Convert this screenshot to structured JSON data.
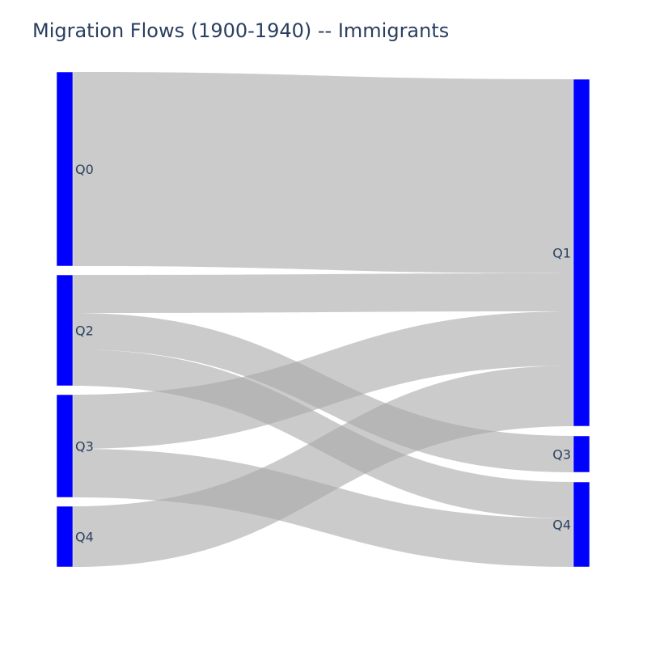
{
  "title": "Migration Flows (1900-1940) -- Immigrants",
  "colors": {
    "node": "#0000ff",
    "link": "#a8a8a8",
    "text": "#2a3f5f"
  },
  "chart_data": {
    "type": "sankey",
    "title": "Migration Flows (1900-1940) -- Immigrants",
    "source_nodes": [
      "Q0",
      "Q2",
      "Q3",
      "Q4"
    ],
    "target_nodes": [
      "Q1",
      "Q3",
      "Q4"
    ],
    "links": [
      {
        "source": "Q0",
        "target": "Q1",
        "value": 240
      },
      {
        "source": "Q2",
        "target": "Q1",
        "value": 47
      },
      {
        "source": "Q2",
        "target": "Q3",
        "value": 45
      },
      {
        "source": "Q2",
        "target": "Q4",
        "value": 45
      },
      {
        "source": "Q3",
        "target": "Q1",
        "value": 67
      },
      {
        "source": "Q3",
        "target": "Q4",
        "value": 60
      },
      {
        "source": "Q4",
        "target": "Q1",
        "value": 75
      }
    ]
  }
}
